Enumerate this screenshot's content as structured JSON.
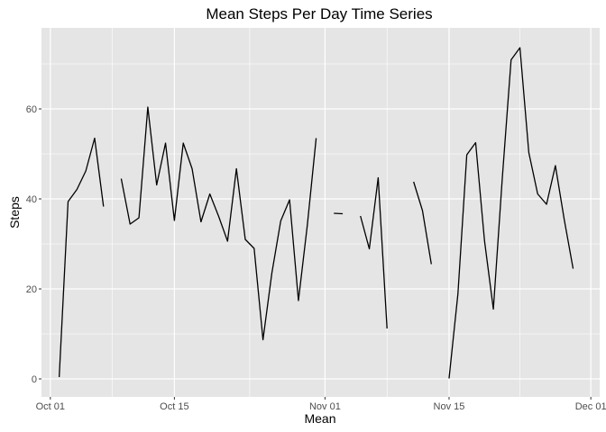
{
  "chart_data": {
    "type": "line",
    "title": "Mean Steps Per Day Time Series",
    "xlabel": "Mean",
    "ylabel": "Steps",
    "xlim": [
      "2012-09-30",
      "2012-12-02"
    ],
    "ylim": [
      -4,
      78
    ],
    "x_ticks": [
      {
        "date": "2012-10-01",
        "label": "Oct 01"
      },
      {
        "date": "2012-10-15",
        "label": "Oct 15"
      },
      {
        "date": "2012-11-01",
        "label": "Nov 01"
      },
      {
        "date": "2012-11-15",
        "label": "Nov 15"
      },
      {
        "date": "2012-12-01",
        "label": "Dec 01"
      }
    ],
    "y_ticks": [
      0,
      20,
      40,
      60
    ],
    "grid": true,
    "background": "#e5e5e5",
    "grid_color": "#ffffff",
    "line_color": "#000000",
    "series": [
      {
        "values": [
          {
            "date": "2012-10-02",
            "y": 0.4
          },
          {
            "date": "2012-10-03",
            "y": 39.4
          },
          {
            "date": "2012-10-04",
            "y": 42.1
          },
          {
            "date": "2012-10-05",
            "y": 46.2
          },
          {
            "date": "2012-10-06",
            "y": 53.5
          },
          {
            "date": "2012-10-07",
            "y": 38.3
          }
        ]
      },
      {
        "values": [
          {
            "date": "2012-10-09",
            "y": 44.5
          },
          {
            "date": "2012-10-10",
            "y": 34.4
          },
          {
            "date": "2012-10-11",
            "y": 35.8
          },
          {
            "date": "2012-10-12",
            "y": 60.4
          },
          {
            "date": "2012-10-13",
            "y": 43.1
          },
          {
            "date": "2012-10-14",
            "y": 52.4
          },
          {
            "date": "2012-10-15",
            "y": 35.2
          },
          {
            "date": "2012-10-16",
            "y": 52.4
          },
          {
            "date": "2012-10-17",
            "y": 46.7
          },
          {
            "date": "2012-10-18",
            "y": 34.9
          },
          {
            "date": "2012-10-19",
            "y": 41.1
          },
          {
            "date": "2012-10-20",
            "y": 36.1
          },
          {
            "date": "2012-10-21",
            "y": 30.6
          },
          {
            "date": "2012-10-22",
            "y": 46.7
          },
          {
            "date": "2012-10-23",
            "y": 31.0
          },
          {
            "date": "2012-10-24",
            "y": 29.0
          },
          {
            "date": "2012-10-25",
            "y": 8.7
          },
          {
            "date": "2012-10-26",
            "y": 23.5
          },
          {
            "date": "2012-10-27",
            "y": 35.1
          },
          {
            "date": "2012-10-28",
            "y": 39.8
          },
          {
            "date": "2012-10-29",
            "y": 17.4
          },
          {
            "date": "2012-10-30",
            "y": 34.1
          },
          {
            "date": "2012-10-31",
            "y": 53.5
          }
        ]
      },
      {
        "values": [
          {
            "date": "2012-11-02",
            "y": 36.8
          },
          {
            "date": "2012-11-03",
            "y": 36.7
          }
        ]
      },
      {
        "values": [
          {
            "date": "2012-11-05",
            "y": 36.2
          },
          {
            "date": "2012-11-06",
            "y": 28.9
          },
          {
            "date": "2012-11-07",
            "y": 44.7
          },
          {
            "date": "2012-11-08",
            "y": 11.2
          }
        ]
      },
      {
        "values": [
          {
            "date": "2012-11-11",
            "y": 43.8
          },
          {
            "date": "2012-11-12",
            "y": 37.4
          },
          {
            "date": "2012-11-13",
            "y": 25.5
          }
        ]
      },
      {
        "values": [
          {
            "date": "2012-11-15",
            "y": 0.1
          },
          {
            "date": "2012-11-16",
            "y": 18.9
          },
          {
            "date": "2012-11-17",
            "y": 49.8
          },
          {
            "date": "2012-11-18",
            "y": 52.5
          },
          {
            "date": "2012-11-19",
            "y": 30.7
          },
          {
            "date": "2012-11-20",
            "y": 15.5
          },
          {
            "date": "2012-11-21",
            "y": 44.4
          },
          {
            "date": "2012-11-22",
            "y": 70.9
          },
          {
            "date": "2012-11-23",
            "y": 73.6
          },
          {
            "date": "2012-11-24",
            "y": 50.3
          },
          {
            "date": "2012-11-25",
            "y": 41.1
          },
          {
            "date": "2012-11-26",
            "y": 38.8
          },
          {
            "date": "2012-11-27",
            "y": 47.4
          },
          {
            "date": "2012-11-28",
            "y": 35.4
          },
          {
            "date": "2012-11-29",
            "y": 24.5
          }
        ]
      }
    ]
  }
}
